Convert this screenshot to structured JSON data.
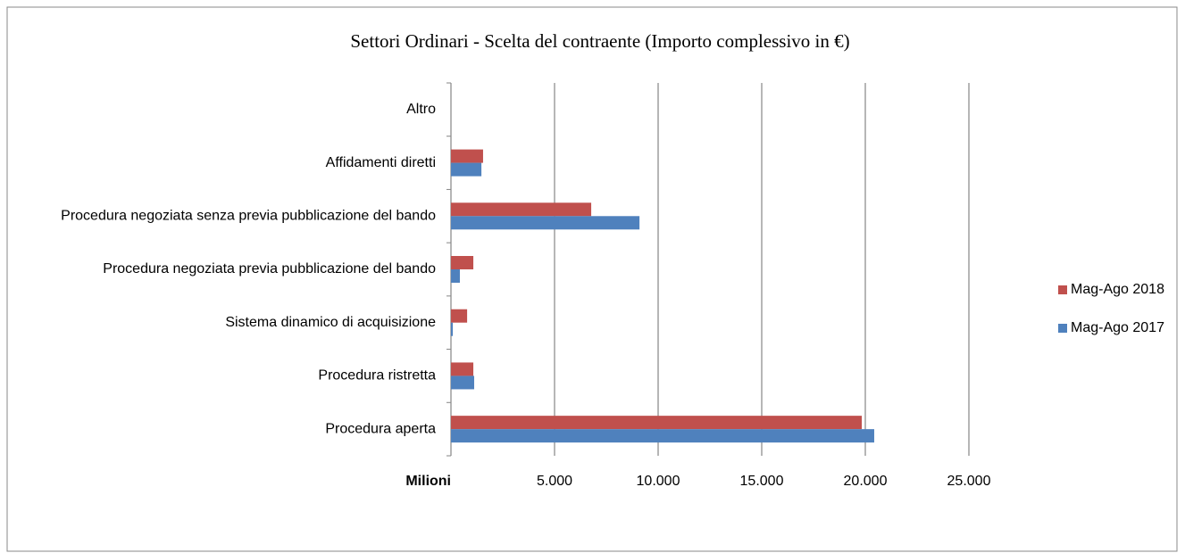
{
  "chart_data": {
    "type": "hbar",
    "title": "Settori Ordinari - Scelta del contraente (Importo complessivo in €)",
    "x_axis_label": "Milioni",
    "categories": [
      "Altro",
      "Affidamenti diretti",
      "Procedura negoziata senza previa pubblicazione del bando",
      "Procedura negoziata previa pubblicazione del bando",
      "Sistema dinamico di acquisizione",
      "Procedura ristretta",
      "Procedura aperta"
    ],
    "series": [
      {
        "name": "Mag-Ago 2018",
        "color": "#c0504d",
        "values": [
          0,
          1550,
          6770,
          1080,
          780,
          1080,
          19830
        ]
      },
      {
        "name": "Mag-Ago 2017",
        "color": "#4f81bd",
        "values": [
          0,
          1470,
          9100,
          430,
          90,
          1120,
          20430
        ]
      }
    ],
    "xlim": [
      0,
      25000
    ],
    "xticks": [
      {
        "value": 5000,
        "label": "5.000"
      },
      {
        "value": 10000,
        "label": "10.000"
      },
      {
        "value": 15000,
        "label": "15.000"
      },
      {
        "value": 20000,
        "label": "20.000"
      },
      {
        "value": 25000,
        "label": "25.000"
      }
    ],
    "grid": true,
    "legend": "right"
  }
}
